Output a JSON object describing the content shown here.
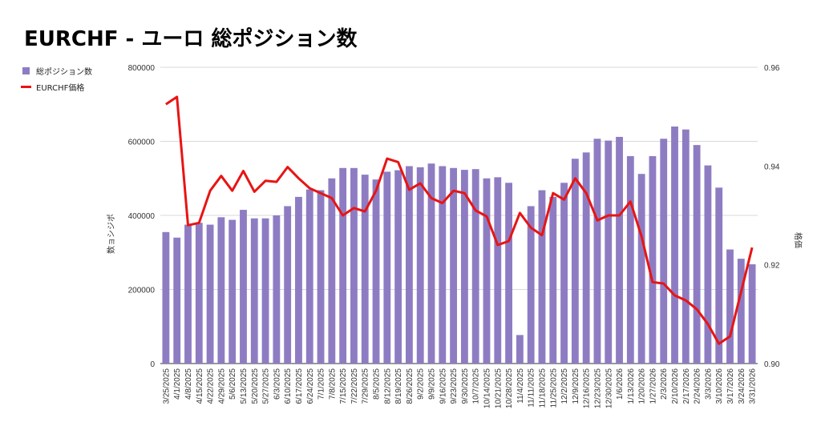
{
  "chart_data": {
    "type": "bar",
    "title": "EURCHF - ユーロ 総ポジション数",
    "ylabel": "数ョシジポ",
    "y2label": "格価",
    "ylim": [
      0,
      800000
    ],
    "y2lim": [
      0.9,
      0.96
    ],
    "yticks": [
      "800000",
      "600000",
      "400000",
      "200000",
      "0"
    ],
    "y2ticks": [
      "0.96",
      "0.94",
      "0.92",
      "0.90"
    ],
    "grid": true,
    "legend_position": "top-left",
    "categories": [
      "3/25/2025",
      "4/1/2025",
      "4/8/2025",
      "4/15/2025",
      "4/22/2025",
      "4/29/2025",
      "5/6/2025",
      "5/13/2025",
      "5/20/2025",
      "5/27/2025",
      "6/3/2025",
      "6/10/2025",
      "6/17/2025",
      "6/24/2025",
      "7/1/2025",
      "7/8/2025",
      "7/15/2025",
      "7/22/2025",
      "7/29/2025",
      "8/5/2025",
      "8/12/2025",
      "8/19/2025",
      "8/26/2025",
      "9/2/2025",
      "9/9/2025",
      "9/16/2025",
      "9/23/2025",
      "9/30/2025",
      "10/7/2025",
      "10/14/2025",
      "10/21/2025",
      "10/28/2025",
      "11/4/2025",
      "11/11/2025",
      "11/18/2025",
      "11/25/2025",
      "12/2/2025",
      "12/9/2025",
      "12/16/2025",
      "12/23/2025",
      "12/30/2025",
      "1/6/2026",
      "1/13/2026",
      "1/20/2026",
      "1/27/2026",
      "2/3/2026",
      "2/10/2026",
      "2/17/2026",
      "2/24/2026",
      "3/3/2026",
      "3/10/2026",
      "3/17/2026",
      "3/24/2026",
      "3/31/2026"
    ],
    "series": [
      {
        "name": "総ポジション数",
        "axis": "left",
        "color": "#8e7cc3",
        "values": [
          355000,
          340000,
          375000,
          380000,
          375000,
          395000,
          388000,
          415000,
          392000,
          392000,
          400000,
          425000,
          450000,
          470000,
          468000,
          500000,
          528000,
          528000,
          510000,
          497000,
          518000,
          522000,
          533000,
          530000,
          540000,
          533000,
          528000,
          523000,
          525000,
          500000,
          503000,
          488000,
          77000,
          425000,
          468000,
          450000,
          488000,
          553000,
          570000,
          607000,
          602000,
          612000,
          560000,
          512000,
          560000,
          607000,
          640000,
          632000,
          590000,
          535000,
          475000,
          308000,
          283000,
          268000
        ]
      },
      {
        "name": "EURCHF価格",
        "axis": "right",
        "color": "#e81414",
        "values": [
          0.9525,
          0.954,
          0.928,
          0.9285,
          0.935,
          0.938,
          0.935,
          0.939,
          0.9348,
          0.937,
          0.9368,
          0.9398,
          0.9375,
          0.9355,
          0.9345,
          0.9335,
          0.93,
          0.9315,
          0.9308,
          0.935,
          0.9415,
          0.9408,
          0.9352,
          0.9365,
          0.9335,
          0.9325,
          0.935,
          0.9345,
          0.931,
          0.9298,
          0.924,
          0.9248,
          0.9305,
          0.9275,
          0.926,
          0.9345,
          0.9332,
          0.9375,
          0.9345,
          0.929,
          0.93,
          0.93,
          0.9328,
          0.9258,
          0.9165,
          0.9162,
          0.9138,
          0.9128,
          0.911,
          0.908,
          0.904,
          0.9055,
          0.9145,
          0.9235
        ]
      }
    ]
  }
}
